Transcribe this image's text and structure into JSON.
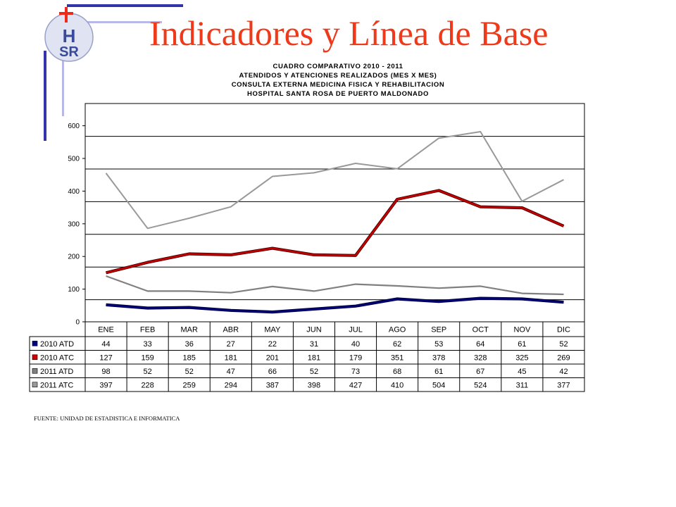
{
  "slide": {
    "title": "Indicadores y Línea de Base",
    "source": "FUENTE: UNIDAD DE ESTADISTICA E INFORMATICA"
  },
  "logo": {
    "text_top": "H",
    "text_bottom": "SR",
    "icon": "cross-icon"
  },
  "colors": {
    "title": "#ee3a1a",
    "deco_line": "#3333aa",
    "deco_light": "#b7b7e8",
    "s2010_atd": "#000080",
    "s2010_atc": "#cc0000",
    "s2011_atd": "#808080",
    "s2011_atc": "#999999"
  },
  "chart_data": {
    "type": "line",
    "title_lines": [
      "CUADRO COMPARATIVO 2010 - 2011",
      "ATENDIDOS Y ATENCIONES  REALIZADOS (MES X MES)",
      "CONSULTA EXTERNA MEDICINA FISICA Y REHABILITACION",
      "HOSPITAL SANTA ROSA DE PUERTO MALDONADO"
    ],
    "categories": [
      "ENE",
      "FEB",
      "MAR",
      "ABR",
      "MAY",
      "JUN",
      "JUL",
      "AGO",
      "SEP",
      "OCT",
      "NOV",
      "DIC"
    ],
    "y_ticks": [
      0,
      100,
      200,
      300,
      400,
      500,
      600
    ],
    "ylim": [
      0,
      660
    ],
    "grid": true,
    "legend": "data-table-below",
    "series": [
      {
        "name": "2010 ATD",
        "values": [
          44,
          33,
          36,
          27,
          22,
          31,
          40,
          62,
          53,
          64,
          61,
          52
        ],
        "plotted": [
          52,
          42,
          44,
          35,
          30,
          39,
          48,
          70,
          62,
          72,
          70,
          60
        ]
      },
      {
        "name": "2010 ATC",
        "values": [
          127,
          159,
          185,
          181,
          201,
          181,
          179,
          351,
          378,
          328,
          325,
          269
        ],
        "plotted": [
          150,
          182,
          208,
          205,
          225,
          205,
          203,
          375,
          402,
          352,
          349,
          293
        ]
      },
      {
        "name": "2011 ATD",
        "values": [
          98,
          52,
          52,
          47,
          66,
          52,
          73,
          68,
          61,
          67,
          45,
          42
        ],
        "plotted": [
          140,
          94,
          94,
          89,
          108,
          94,
          115,
          110,
          103,
          109,
          87,
          84
        ]
      },
      {
        "name": "2011 ATC",
        "values": [
          397,
          228,
          259,
          294,
          387,
          398,
          427,
          410,
          504,
          524,
          311,
          377
        ],
        "plotted": [
          455,
          286,
          317,
          352,
          445,
          456,
          485,
          468,
          562,
          582,
          369,
          435
        ]
      }
    ]
  }
}
